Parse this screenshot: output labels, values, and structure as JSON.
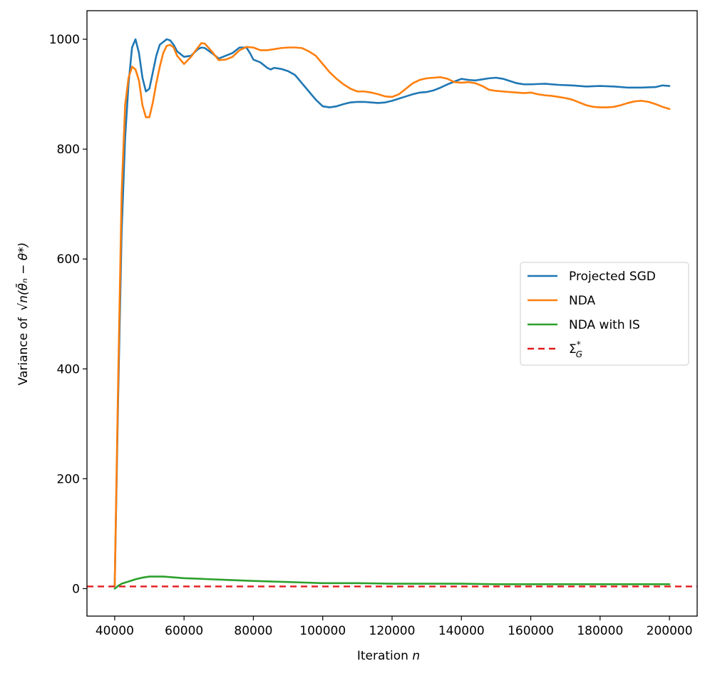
{
  "chart_data": {
    "type": "line",
    "xlabel": "Iteration",
    "xlabel_var": "n",
    "ylabel": "Variance of",
    "ylabel_expr": "√n(θ̄ₙ − θ*)",
    "xlim": [
      32000,
      208000
    ],
    "ylim": [
      -50,
      1052
    ],
    "xticks": [
      40000,
      60000,
      80000,
      100000,
      120000,
      140000,
      160000,
      180000,
      200000
    ],
    "yticks": [
      0,
      200,
      400,
      600,
      800,
      1000
    ],
    "legend_position": "center-right",
    "series": [
      {
        "name": "Projected SGD",
        "color": "#1f77b4",
        "x": [
          40000,
          41000,
          42000,
          43000,
          44000,
          45000,
          46000,
          47000,
          48000,
          49000,
          50000,
          51000,
          52000,
          53000,
          54000,
          55000,
          56000,
          57000,
          58000,
          60000,
          62000,
          64000,
          65000,
          66000,
          68000,
          70000,
          72000,
          74000,
          76000,
          78000,
          79000,
          80000,
          82000,
          84000,
          85000,
          86000,
          88000,
          90000,
          92000,
          94000,
          96000,
          98000,
          100000,
          102000,
          104000,
          106000,
          108000,
          110000,
          112000,
          114000,
          116000,
          118000,
          120000,
          122000,
          124000,
          126000,
          128000,
          130000,
          132000,
          134000,
          136000,
          138000,
          140000,
          142000,
          144000,
          146000,
          148000,
          150000,
          152000,
          154000,
          156000,
          158000,
          160000,
          164000,
          168000,
          172000,
          176000,
          180000,
          184000,
          186000,
          188000,
          192000,
          196000,
          198000,
          200000
        ],
        "values": [
          5,
          350,
          650,
          820,
          920,
          985,
          1000,
          975,
          930,
          905,
          910,
          940,
          970,
          990,
          995,
          1000,
          998,
          990,
          978,
          968,
          970,
          982,
          985,
          984,
          975,
          965,
          970,
          975,
          985,
          985,
          975,
          963,
          958,
          948,
          945,
          948,
          946,
          942,
          935,
          920,
          905,
          890,
          878,
          876,
          878,
          882,
          885,
          886,
          886,
          885,
          884,
          885,
          888,
          892,
          896,
          900,
          903,
          904,
          907,
          912,
          918,
          923,
          928,
          926,
          925,
          927,
          929,
          930,
          928,
          924,
          920,
          918,
          918,
          919,
          917,
          916,
          914,
          915,
          914,
          913,
          912,
          912,
          913,
          916,
          915
        ]
      },
      {
        "name": "NDA",
        "color": "#ff7f0e",
        "x": [
          40000,
          41000,
          42000,
          43000,
          44000,
          45000,
          46000,
          47000,
          48000,
          49000,
          50000,
          51000,
          52000,
          53000,
          54000,
          55000,
          56000,
          57000,
          58000,
          60000,
          62000,
          64000,
          65000,
          66000,
          68000,
          70000,
          72000,
          74000,
          76000,
          78000,
          80000,
          82000,
          84000,
          86000,
          88000,
          90000,
          92000,
          94000,
          96000,
          98000,
          100000,
          102000,
          104000,
          106000,
          108000,
          110000,
          112000,
          114000,
          116000,
          118000,
          120000,
          122000,
          124000,
          126000,
          128000,
          130000,
          132000,
          134000,
          136000,
          138000,
          140000,
          142000,
          144000,
          146000,
          148000,
          150000,
          152000,
          154000,
          156000,
          158000,
          160000,
          162000,
          164000,
          166000,
          168000,
          170000,
          172000,
          174000,
          176000,
          178000,
          180000,
          182000,
          184000,
          186000,
          188000,
          190000,
          192000,
          194000,
          196000,
          198000,
          200000
        ],
        "values": [
          5,
          380,
          720,
          880,
          930,
          950,
          945,
          925,
          880,
          858,
          858,
          885,
          920,
          950,
          975,
          988,
          990,
          985,
          970,
          955,
          968,
          985,
          993,
          992,
          978,
          962,
          963,
          968,
          980,
          986,
          985,
          980,
          980,
          982,
          984,
          985,
          985,
          984,
          978,
          970,
          955,
          940,
          928,
          918,
          910,
          905,
          905,
          903,
          900,
          896,
          895,
          900,
          910,
          920,
          926,
          929,
          930,
          931,
          928,
          922,
          921,
          922,
          920,
          915,
          908,
          906,
          905,
          904,
          903,
          902,
          903,
          900,
          898,
          897,
          895,
          893,
          890,
          885,
          880,
          877,
          876,
          876,
          877,
          880,
          884,
          887,
          888,
          886,
          882,
          877,
          873
        ]
      },
      {
        "name": "NDA with IS",
        "color": "#2ca02c",
        "x": [
          40000,
          41000,
          42000,
          44000,
          46000,
          48000,
          50000,
          52000,
          54000,
          56000,
          58000,
          60000,
          64000,
          68000,
          72000,
          76000,
          80000,
          85000,
          90000,
          95000,
          100000,
          110000,
          120000,
          130000,
          140000,
          150000,
          160000,
          170000,
          180000,
          190000,
          200000
        ],
        "values": [
          0,
          5,
          9,
          13,
          17,
          20,
          22,
          22,
          22,
          21,
          20,
          19,
          18,
          17,
          16,
          15,
          14,
          13,
          12,
          11,
          10,
          10,
          9,
          9,
          9,
          8,
          8,
          8,
          8,
          8,
          8
        ]
      },
      {
        "name": "Σ*G",
        "color": "#e31a1c",
        "style": "dashed",
        "hline": 4
      }
    ]
  }
}
